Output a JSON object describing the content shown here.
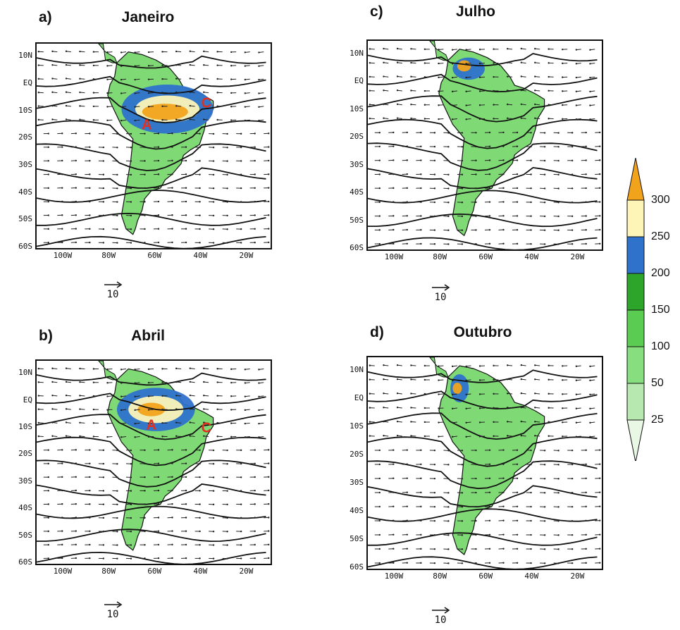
{
  "panels": [
    {
      "letter": "a)",
      "title": "Janeiro",
      "lat_labels": [
        "10N",
        "EQ",
        "10S",
        "20S",
        "30S",
        "40S",
        "50S",
        "60S"
      ],
      "lon_labels": [
        "100W",
        "80W",
        "60W",
        "40W",
        "20W"
      ],
      "markers": [
        {
          "label": "A",
          "lon": -64,
          "lat": -15,
          "color": "#e03020"
        },
        {
          "label": "C",
          "lon": -38,
          "lat": -7,
          "color": "#e03020"
        }
      ],
      "ref_vector": "10"
    },
    {
      "letter": "c)",
      "title": "Julho",
      "lat_labels": [
        "10N",
        "EQ",
        "10S",
        "20S",
        "30S",
        "40S",
        "50S",
        "60S"
      ],
      "lon_labels": [
        "100W",
        "80W",
        "60W",
        "40W",
        "20W"
      ],
      "markers": [],
      "ref_vector": "10"
    },
    {
      "letter": "b)",
      "title": "Abril",
      "lat_labels": [
        "10N",
        "EQ",
        "10S",
        "20S",
        "30S",
        "40S",
        "50S",
        "60S"
      ],
      "lon_labels": [
        "100W",
        "80W",
        "60W",
        "40W",
        "20W"
      ],
      "markers": [
        {
          "label": "A",
          "lon": -62,
          "lat": -9,
          "color": "#e03020"
        },
        {
          "label": "C",
          "lon": -38,
          "lat": -10,
          "color": "#e03020"
        }
      ],
      "ref_vector": "10"
    },
    {
      "letter": "d)",
      "title": "Outubro",
      "lat_labels": [
        "10N",
        "EQ",
        "10S",
        "20S",
        "30S",
        "40S",
        "50S",
        "60S"
      ],
      "lon_labels": [
        "100W",
        "80W",
        "60W",
        "40W",
        "20W"
      ],
      "markers": [],
      "ref_vector": "10"
    }
  ],
  "legend": {
    "levels": [
      "25",
      "50",
      "100",
      "150",
      "200",
      "250",
      "300"
    ],
    "colors": [
      "#e9f8e4",
      "#b6e8b0",
      "#86de7e",
      "#5acc52",
      "#2da52b",
      "#2f72cc",
      "#fdf4b8",
      "#f2a31c"
    ]
  },
  "colors": {
    "land_green": "#7fda75",
    "rain_blue": "#2f72cc",
    "rain_yellow": "#fdf4b8",
    "rain_orange": "#f2a31c"
  }
}
